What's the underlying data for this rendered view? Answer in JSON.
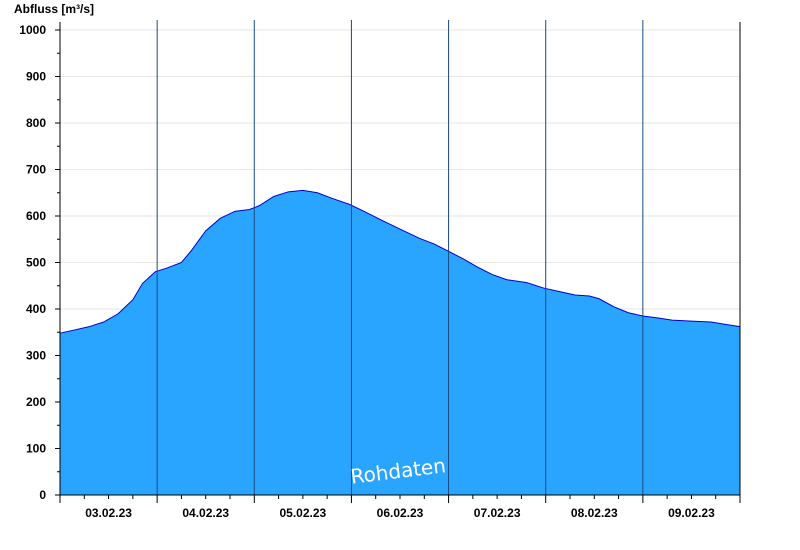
{
  "chart_data": {
    "type": "area",
    "title": "",
    "ylabel": "Abfluss [m³/s]",
    "xlabel": "",
    "ylim": [
      0,
      1000
    ],
    "yticks": [
      0,
      100,
      200,
      300,
      400,
      500,
      600,
      700,
      800,
      900,
      1000
    ],
    "grid": "horizontal",
    "x_unit": "days",
    "xlim": [
      0,
      7
    ],
    "day_ticks": [
      0,
      1,
      2,
      3,
      4,
      5,
      6,
      7
    ],
    "xtick_labels": [
      {
        "x": 0.5,
        "label": "03.02.23"
      },
      {
        "x": 1.5,
        "label": "04.02.23"
      },
      {
        "x": 2.5,
        "label": "05.02.23"
      },
      {
        "x": 3.5,
        "label": "06.02.23"
      },
      {
        "x": 4.5,
        "label": "07.02.23"
      },
      {
        "x": 5.5,
        "label": "08.02.23"
      },
      {
        "x": 6.5,
        "label": "09.02.23"
      }
    ],
    "series": [
      {
        "name": "",
        "color": "#2aa5ff",
        "line_color": "#0000cc",
        "points": [
          [
            0.0,
            348
          ],
          [
            0.15,
            355
          ],
          [
            0.3,
            362
          ],
          [
            0.45,
            372
          ],
          [
            0.6,
            390
          ],
          [
            0.75,
            420
          ],
          [
            0.85,
            455
          ],
          [
            0.98,
            480
          ],
          [
            1.1,
            488
          ],
          [
            1.25,
            500
          ],
          [
            1.35,
            525
          ],
          [
            1.5,
            568
          ],
          [
            1.65,
            595
          ],
          [
            1.8,
            610
          ],
          [
            1.95,
            614
          ],
          [
            2.05,
            622
          ],
          [
            2.2,
            642
          ],
          [
            2.35,
            652
          ],
          [
            2.5,
            655
          ],
          [
            2.65,
            650
          ],
          [
            2.8,
            638
          ],
          [
            2.98,
            625
          ],
          [
            3.15,
            608
          ],
          [
            3.3,
            592
          ],
          [
            3.5,
            572
          ],
          [
            3.7,
            552
          ],
          [
            3.85,
            540
          ],
          [
            4.0,
            524
          ],
          [
            4.15,
            508
          ],
          [
            4.3,
            490
          ],
          [
            4.45,
            474
          ],
          [
            4.6,
            463
          ],
          [
            4.8,
            457
          ],
          [
            4.98,
            445
          ],
          [
            5.15,
            437
          ],
          [
            5.3,
            430
          ],
          [
            5.45,
            428
          ],
          [
            5.55,
            422
          ],
          [
            5.7,
            405
          ],
          [
            5.85,
            392
          ],
          [
            6.0,
            385
          ],
          [
            6.15,
            381
          ],
          [
            6.3,
            376
          ],
          [
            6.5,
            374
          ],
          [
            6.7,
            372
          ],
          [
            6.85,
            367
          ],
          [
            7.0,
            362
          ]
        ]
      }
    ],
    "annotation": "Rohdaten"
  }
}
